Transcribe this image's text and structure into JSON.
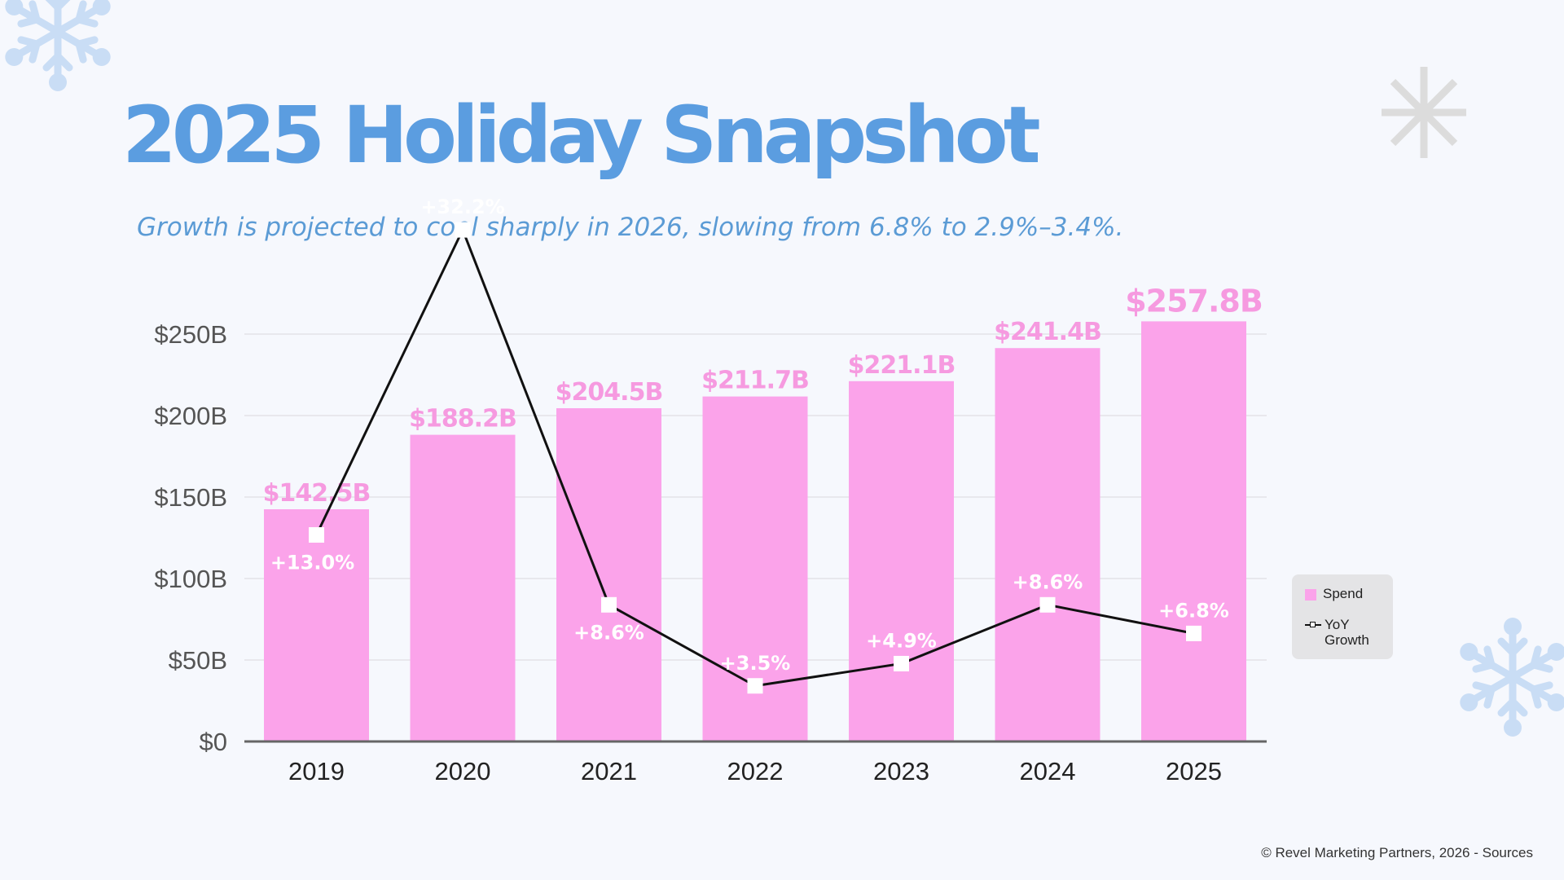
{
  "slide": {
    "title": "2025 Holiday Snapshot",
    "subtitle": "Growth is projected to cool sharply in 2026, slowing from 6.8% to 2.9%–3.4%.",
    "footer": "© Revel Marketing Partners, 2026 - Sources"
  },
  "colors": {
    "background": "#f6f8fd",
    "title": "#5b9de0",
    "subtitle": "#5b9bd5",
    "bar": "#fba3ea",
    "bar_label": "#f69ae0",
    "growth_line": "#111111",
    "growth_label": "#ffffff",
    "axis_text": "#555555",
    "snowflake": "#c9ddf5",
    "asterisk": "#dcdcdc"
  },
  "decorations": [
    "snowflake-icon",
    "asterisk-icon",
    "snowflake-icon"
  ],
  "chart_data": {
    "type": "bar",
    "categories": [
      "2019",
      "2020",
      "2021",
      "2022",
      "2023",
      "2024",
      "2025"
    ],
    "series": [
      {
        "name": "Spend",
        "type": "bar",
        "values": [
          142.5,
          188.2,
          204.5,
          211.7,
          221.1,
          241.4,
          257.8
        ],
        "labels": [
          "$142.5B",
          "$188.2B",
          "$204.5B",
          "$211.7B",
          "$221.1B",
          "$241.4B",
          "$257.8B"
        ]
      },
      {
        "name": "YoY\nGrowth",
        "type": "line",
        "values": [
          13.0,
          32.2,
          8.6,
          3.5,
          4.9,
          8.6,
          6.8
        ],
        "labels": [
          "+13.0%",
          "+32.2%",
          "+8.6%",
          "+3.5%",
          "+4.9%",
          "+8.6%",
          "+6.8%"
        ]
      }
    ],
    "ylim": [
      0,
      250
    ],
    "yticks": [
      0,
      50,
      100,
      150,
      200,
      250
    ],
    "ytick_labels": [
      "$0",
      "$50B",
      "$100B",
      "$150B",
      "$200B",
      "$250B"
    ],
    "grid": true,
    "legend": "right"
  }
}
